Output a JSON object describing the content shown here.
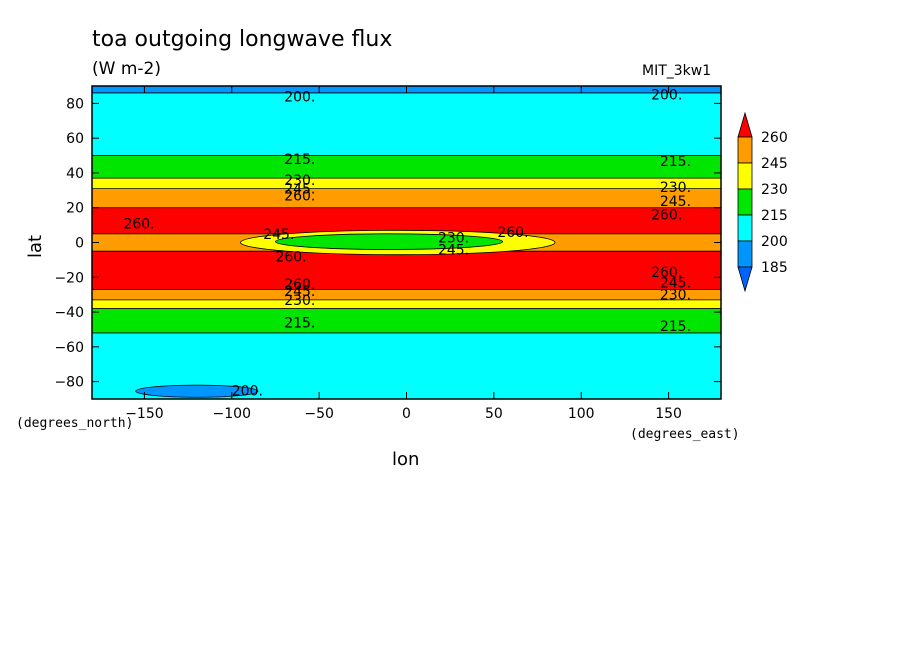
{
  "chart_data": {
    "type": "heatmap",
    "title": "toa outgoing longwave flux",
    "subtitle": "(W m-2)",
    "tag": "MIT_3kw1",
    "xlabel": "lon",
    "ylabel": "lat",
    "xunits": "(degrees_east)",
    "yunits": "(degrees_north)",
    "xlim": [
      -180,
      180
    ],
    "ylim": [
      -90,
      90
    ],
    "xticks": [
      -150,
      -100,
      -50,
      0,
      50,
      100,
      150
    ],
    "yticks": [
      -80,
      -60,
      -40,
      -20,
      0,
      20,
      40,
      60,
      80
    ],
    "levels": [
      185,
      200,
      215,
      230,
      245,
      260
    ],
    "colorbar": {
      "labels": [
        "260",
        "245",
        "230",
        "215",
        "200",
        "185"
      ],
      "colors": [
        "#ff0000",
        "#ff9c00",
        "#ffff00",
        "#00e600",
        "#00ffff",
        "#0096ff"
      ],
      "over_color": "#ff0000",
      "under_color": "#0064ff"
    },
    "latitude_bands": [
      {
        "lat": [
          86,
          90
        ],
        "range": "185-200",
        "color": "#0096ff"
      },
      {
        "lat": [
          50,
          86
        ],
        "range": "200-215",
        "color": "#00ffff"
      },
      {
        "lat": [
          37,
          50
        ],
        "range": "215-230",
        "color": "#00e600"
      },
      {
        "lat": [
          31,
          37
        ],
        "range": "230-245",
        "color": "#ffff00"
      },
      {
        "lat": [
          20,
          31
        ],
        "range": "245-260",
        "color": "#ff9c00"
      },
      {
        "lat": [
          5,
          20
        ],
        "range": ">260",
        "color": "#ff0000"
      },
      {
        "lat": [
          -5,
          5
        ],
        "range": "245-260",
        "color": "#ff9c00"
      },
      {
        "lat": [
          -27,
          -5
        ],
        "range": ">260",
        "color": "#ff0000"
      },
      {
        "lat": [
          -33,
          -27
        ],
        "range": "245-260",
        "color": "#ff9c00"
      },
      {
        "lat": [
          -38,
          -33
        ],
        "range": "230-245",
        "color": "#ffff00"
      },
      {
        "lat": [
          -52,
          -38
        ],
        "range": "215-230",
        "color": "#00e600"
      },
      {
        "lat": [
          -90,
          -52
        ],
        "range": "200-215",
        "color": "#00ffff"
      }
    ],
    "features": [
      {
        "kind": "ellipse",
        "lon": [
          -95,
          85
        ],
        "lat": [
          -7,
          7
        ],
        "range": "230-245",
        "color": "#ffff00"
      },
      {
        "kind": "ellipse",
        "lon": [
          -75,
          55
        ],
        "lat": [
          -4,
          5
        ],
        "range": "215-230",
        "color": "#00e600"
      },
      {
        "kind": "ellipse",
        "lon": [
          -155,
          -85
        ],
        "lat": [
          -89,
          -82
        ],
        "range": "185-200",
        "color": "#0096ff"
      }
    ],
    "contour_labels": [
      {
        "text": "200.",
        "lon": -70,
        "lat": 84
      },
      {
        "text": "200.",
        "lon": 140,
        "lat": 85
      },
      {
        "text": "215.",
        "lon": -70,
        "lat": 48
      },
      {
        "text": "215.",
        "lon": 145,
        "lat": 47
      },
      {
        "text": "230.",
        "lon": -70,
        "lat": 36
      },
      {
        "text": "245.",
        "lon": -70,
        "lat": 31
      },
      {
        "text": "260.",
        "lon": -70,
        "lat": 27
      },
      {
        "text": "230.",
        "lon": 145,
        "lat": 32
      },
      {
        "text": "245.",
        "lon": 145,
        "lat": 24
      },
      {
        "text": "260.",
        "lon": 140,
        "lat": 16
      },
      {
        "text": "260.",
        "lon": -162,
        "lat": 11
      },
      {
        "text": "245.",
        "lon": -82,
        "lat": 5
      },
      {
        "text": "260.",
        "lon": 52,
        "lat": 6
      },
      {
        "text": "230.",
        "lon": 18,
        "lat": 3
      },
      {
        "text": "245.",
        "lon": 18,
        "lat": -4
      },
      {
        "text": "260.",
        "lon": -75,
        "lat": -8
      },
      {
        "text": "260.",
        "lon": -70,
        "lat": -24
      },
      {
        "text": "245.",
        "lon": -70,
        "lat": -28
      },
      {
        "text": "230.",
        "lon": -70,
        "lat": -33
      },
      {
        "text": "260.",
        "lon": 140,
        "lat": -17
      },
      {
        "text": "245.",
        "lon": 145,
        "lat": -23
      },
      {
        "text": "230.",
        "lon": 145,
        "lat": -30
      },
      {
        "text": "215.",
        "lon": -70,
        "lat": -46
      },
      {
        "text": "215.",
        "lon": 145,
        "lat": -48
      },
      {
        "text": "200.",
        "lon": -100,
        "lat": -85
      }
    ]
  }
}
